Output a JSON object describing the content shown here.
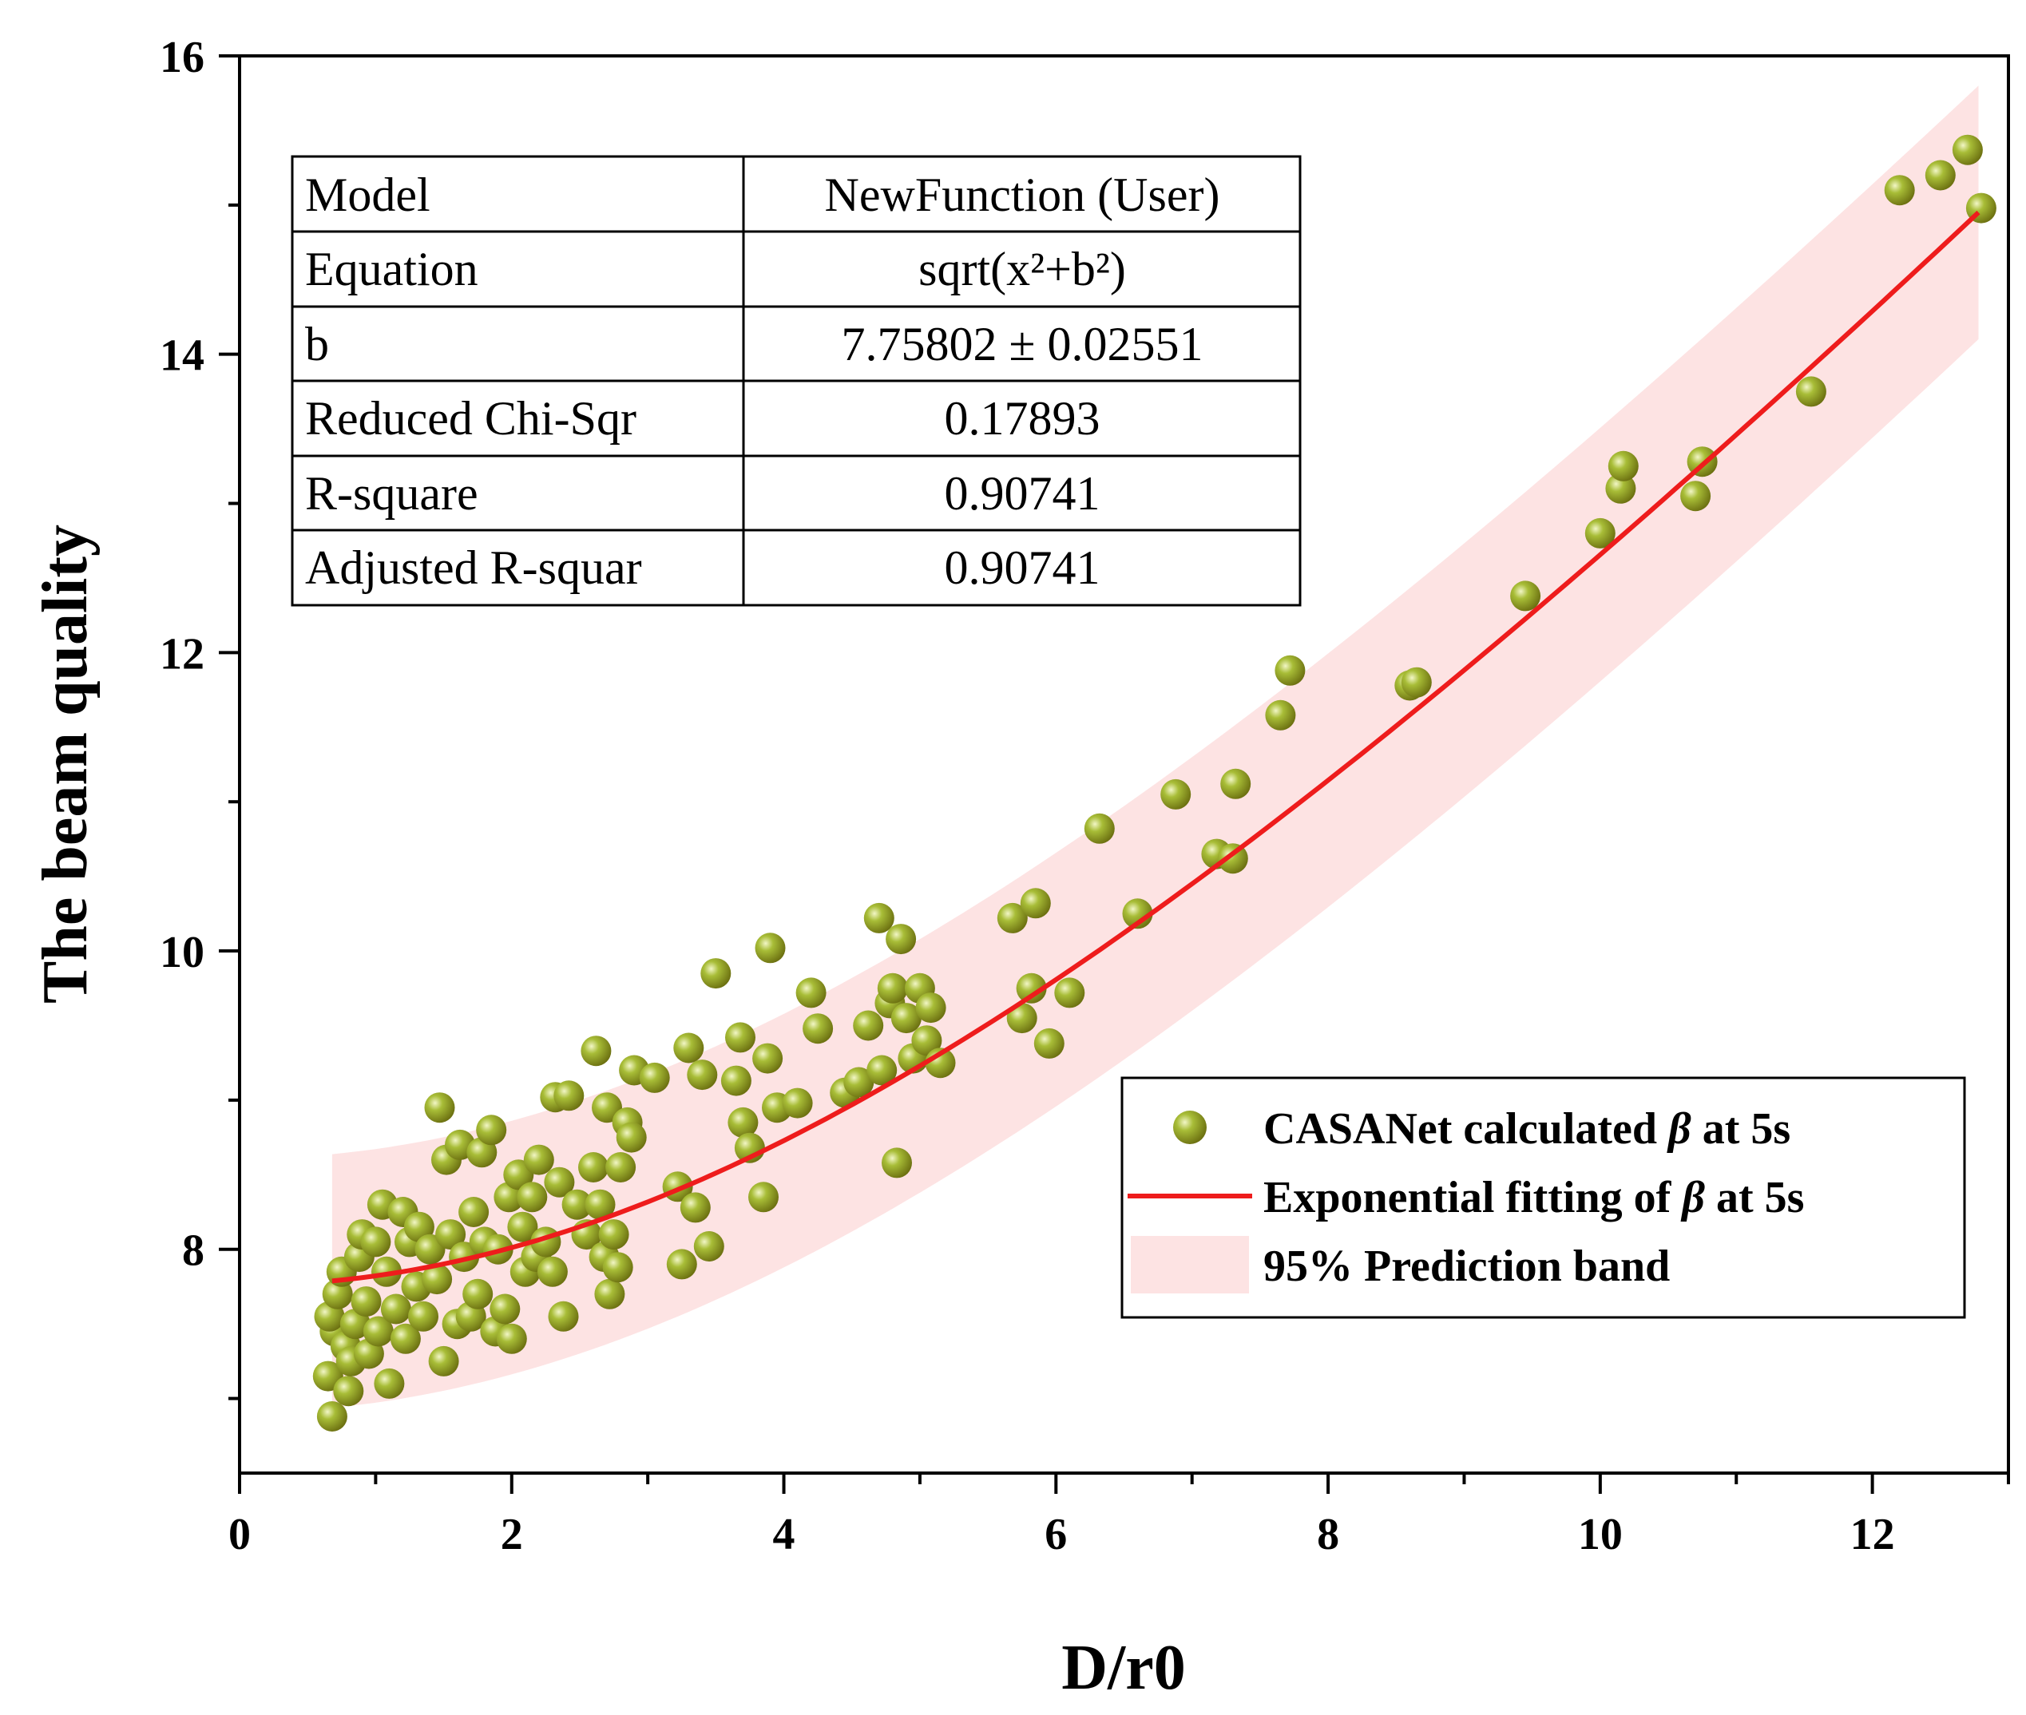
{
  "chart_data": {
    "type": "scatter",
    "xlabel": "D/r0",
    "ylabel": "The beam quality",
    "xlim": [
      0,
      13
    ],
    "ylim": [
      6.5,
      16
    ],
    "x_ticks": [
      0,
      2,
      4,
      6,
      8,
      10,
      12
    ],
    "y_ticks": [
      8,
      10,
      12,
      14,
      16
    ],
    "x_ticks_labels": [
      "0",
      "2",
      "4",
      "6",
      "8",
      "10",
      "12"
    ],
    "y_ticks_labels": [
      "8",
      "10",
      "12",
      "14",
      "16"
    ],
    "grid": false,
    "colors": {
      "points": "#8a9a1e",
      "fit_line": "#ee1c1c",
      "band": "#fde3e3"
    },
    "fit": {
      "function": "sqrt(x^2+b^2)",
      "b": 7.75802,
      "x_range": [
        0.68,
        12.78
      ]
    },
    "band": {
      "half_width_at_start": 0.85,
      "half_width_at_end": 0.85
    },
    "fit_table": {
      "rows": [
        {
          "label": "Model",
          "value": "NewFunction (User)"
        },
        {
          "label": "Equation",
          "value": "sqrt(x²+b²)"
        },
        {
          "label": "b",
          "value": "7.75802 ± 0.02551"
        },
        {
          "label": "Reduced Chi-Sqr",
          "value": "0.17893"
        },
        {
          "label": "R-square",
          "value": "0.90741"
        },
        {
          "label": "Adjusted R-squar",
          "value": "0.90741"
        }
      ]
    },
    "legend": {
      "placement": "bottom-right",
      "items": [
        {
          "prefix": "CASANet calculated ",
          "symbol": "β",
          "suffix": " at 5s",
          "kind": "marker"
        },
        {
          "prefix": "Exponential fitting of ",
          "symbol": "β",
          "suffix": " at 5s",
          "kind": "line"
        },
        {
          "prefix": "95% Prediction band",
          "symbol": "",
          "suffix": "",
          "kind": "band"
        }
      ]
    },
    "series": [
      {
        "name": "CASANet calculated β at 5s",
        "points": [
          [
            0.68,
            6.88
          ],
          [
            0.65,
            7.15
          ],
          [
            0.7,
            7.45
          ],
          [
            0.66,
            7.55
          ],
          [
            0.72,
            7.7
          ],
          [
            0.75,
            7.85
          ],
          [
            0.78,
            7.35
          ],
          [
            0.8,
            7.05
          ],
          [
            0.82,
            7.25
          ],
          [
            0.85,
            7.5
          ],
          [
            0.88,
            7.95
          ],
          [
            0.9,
            8.1
          ],
          [
            0.93,
            7.65
          ],
          [
            0.95,
            7.3
          ],
          [
            1.0,
            8.05
          ],
          [
            1.02,
            7.45
          ],
          [
            1.05,
            8.3
          ],
          [
            1.08,
            7.85
          ],
          [
            1.1,
            7.1
          ],
          [
            1.15,
            7.6
          ],
          [
            1.2,
            8.25
          ],
          [
            1.22,
            7.4
          ],
          [
            1.25,
            8.05
          ],
          [
            1.3,
            7.75
          ],
          [
            1.32,
            8.15
          ],
          [
            1.35,
            7.55
          ],
          [
            1.4,
            8.0
          ],
          [
            1.45,
            7.8
          ],
          [
            1.47,
            8.95
          ],
          [
            1.5,
            7.25
          ],
          [
            1.52,
            8.6
          ],
          [
            1.55,
            8.1
          ],
          [
            1.6,
            7.5
          ],
          [
            1.62,
            8.7
          ],
          [
            1.65,
            7.95
          ],
          [
            1.7,
            7.55
          ],
          [
            1.72,
            8.25
          ],
          [
            1.75,
            7.7
          ],
          [
            1.78,
            8.65
          ],
          [
            1.8,
            8.05
          ],
          [
            1.85,
            8.8
          ],
          [
            1.88,
            7.45
          ],
          [
            1.9,
            8.0
          ],
          [
            1.95,
            7.6
          ],
          [
            1.98,
            8.35
          ],
          [
            2.0,
            7.4
          ],
          [
            2.05,
            8.5
          ],
          [
            2.08,
            8.15
          ],
          [
            2.1,
            7.85
          ],
          [
            2.15,
            8.35
          ],
          [
            2.18,
            7.95
          ],
          [
            2.2,
            8.6
          ],
          [
            2.25,
            8.05
          ],
          [
            2.3,
            7.85
          ],
          [
            2.32,
            9.02
          ],
          [
            2.35,
            8.45
          ],
          [
            2.38,
            7.55
          ],
          [
            2.42,
            9.03
          ],
          [
            2.48,
            8.3
          ],
          [
            2.55,
            8.1
          ],
          [
            2.6,
            8.55
          ],
          [
            2.62,
            9.33
          ],
          [
            2.65,
            8.3
          ],
          [
            2.68,
            7.95
          ],
          [
            2.7,
            8.95
          ],
          [
            2.72,
            7.7
          ],
          [
            2.75,
            8.1
          ],
          [
            2.78,
            7.88
          ],
          [
            2.8,
            8.55
          ],
          [
            2.85,
            8.85
          ],
          [
            2.88,
            8.75
          ],
          [
            2.9,
            9.2
          ],
          [
            3.05,
            9.15
          ],
          [
            3.22,
            8.42
          ],
          [
            3.25,
            7.9
          ],
          [
            3.3,
            9.35
          ],
          [
            3.35,
            8.28
          ],
          [
            3.4,
            9.17
          ],
          [
            3.45,
            8.02
          ],
          [
            3.5,
            9.85
          ],
          [
            3.65,
            9.13
          ],
          [
            3.68,
            9.42
          ],
          [
            3.7,
            8.85
          ],
          [
            3.75,
            8.68
          ],
          [
            3.85,
            8.35
          ],
          [
            3.88,
            9.28
          ],
          [
            3.9,
            10.02
          ],
          [
            3.95,
            8.95
          ],
          [
            4.1,
            8.98
          ],
          [
            4.2,
            9.72
          ],
          [
            4.25,
            9.48
          ],
          [
            4.45,
            9.05
          ],
          [
            4.55,
            9.12
          ],
          [
            4.62,
            9.5
          ],
          [
            4.7,
            10.22
          ],
          [
            4.72,
            9.2
          ],
          [
            4.78,
            9.65
          ],
          [
            4.8,
            9.75
          ],
          [
            4.83,
            8.58
          ],
          [
            4.86,
            10.08
          ],
          [
            4.9,
            9.55
          ],
          [
            4.95,
            9.28
          ],
          [
            5.0,
            9.75
          ],
          [
            5.05,
            9.4
          ],
          [
            5.08,
            9.62
          ],
          [
            5.15,
            9.25
          ],
          [
            5.68,
            10.22
          ],
          [
            5.75,
            9.55
          ],
          [
            5.82,
            9.75
          ],
          [
            5.85,
            10.32
          ],
          [
            5.95,
            9.38
          ],
          [
            6.1,
            9.72
          ],
          [
            6.32,
            10.82
          ],
          [
            6.6,
            10.25
          ],
          [
            6.88,
            11.05
          ],
          [
            7.18,
            10.65
          ],
          [
            7.3,
            10.62
          ],
          [
            7.32,
            11.12
          ],
          [
            7.65,
            11.58
          ],
          [
            7.72,
            11.88
          ],
          [
            8.6,
            11.78
          ],
          [
            8.65,
            11.8
          ],
          [
            9.45,
            12.38
          ],
          [
            10.0,
            12.8
          ],
          [
            10.15,
            13.1
          ],
          [
            10.17,
            13.25
          ],
          [
            10.7,
            13.05
          ],
          [
            10.75,
            13.28
          ],
          [
            11.55,
            13.75
          ],
          [
            12.2,
            15.1
          ],
          [
            12.5,
            15.2
          ],
          [
            12.7,
            15.37
          ],
          [
            12.8,
            14.98
          ]
        ]
      }
    ]
  }
}
